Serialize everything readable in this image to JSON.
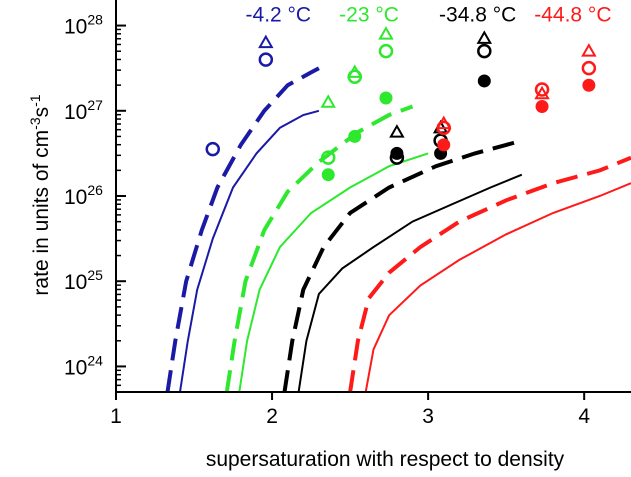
{
  "chart_data": {
    "type": "line",
    "xlabel": "supersaturation with respect to density",
    "ylabel": "rate in units of cm",
    "ylabel_exponent_1": "-3",
    "ylabel_mid": "s",
    "ylabel_exponent_2": "-1",
    "xlim": [
      1,
      4.3
    ],
    "ylim_log10": [
      23.7,
      28.3
    ],
    "x_ticks": [
      {
        "value": 1,
        "label": "1"
      },
      {
        "value": 2,
        "label": "2"
      },
      {
        "value": 3,
        "label": "3"
      },
      {
        "value": 4,
        "label": "4"
      }
    ],
    "y_ticks": [
      {
        "exp": 24,
        "base": "10",
        "sup": "24"
      },
      {
        "exp": 25,
        "base": "10",
        "sup": "25"
      },
      {
        "exp": 26,
        "base": "10",
        "sup": "26"
      },
      {
        "exp": 27,
        "base": "10",
        "sup": "27"
      },
      {
        "exp": 28,
        "base": "10",
        "sup": "28"
      }
    ],
    "series": [
      {
        "name": "-4.2 °C",
        "color": "#1a1aa6",
        "dashed": [
          [
            1.33,
            23.7
          ],
          [
            1.38,
            24.3
          ],
          [
            1.45,
            25.0
          ],
          [
            1.55,
            25.6
          ],
          [
            1.65,
            26.1
          ],
          [
            1.8,
            26.6
          ],
          [
            1.95,
            27.0
          ],
          [
            2.1,
            27.3
          ],
          [
            2.25,
            27.45
          ],
          [
            2.3,
            27.5
          ]
        ],
        "solid": [
          [
            1.41,
            23.7
          ],
          [
            1.46,
            24.3
          ],
          [
            1.52,
            24.9
          ],
          [
            1.62,
            25.5
          ],
          [
            1.75,
            26.1
          ],
          [
            1.9,
            26.5
          ],
          [
            2.05,
            26.8
          ],
          [
            2.2,
            26.95
          ],
          [
            2.3,
            27.0
          ]
        ],
        "triangles": [
          [
            1.96,
            27.8
          ]
        ],
        "circles": [
          [
            1.96,
            27.6
          ],
          [
            1.62,
            26.55
          ]
        ],
        "dots": []
      },
      {
        "name": "-23 °C",
        "color": "#2ee82e",
        "dashed": [
          [
            1.71,
            23.7
          ],
          [
            1.76,
            24.3
          ],
          [
            1.83,
            25.0
          ],
          [
            1.95,
            25.6
          ],
          [
            2.1,
            26.05
          ],
          [
            2.3,
            26.4
          ],
          [
            2.55,
            26.75
          ],
          [
            2.75,
            26.95
          ],
          [
            2.9,
            27.05
          ]
        ],
        "solid": [
          [
            1.79,
            23.7
          ],
          [
            1.84,
            24.3
          ],
          [
            1.92,
            24.9
          ],
          [
            2.05,
            25.4
          ],
          [
            2.25,
            25.8
          ],
          [
            2.5,
            26.1
          ],
          [
            2.75,
            26.35
          ],
          [
            3.0,
            26.5
          ]
        ],
        "triangles": [
          [
            2.36,
            27.1
          ],
          [
            2.53,
            27.45
          ],
          [
            2.73,
            27.9
          ]
        ],
        "circles": [
          [
            2.36,
            26.45
          ],
          [
            2.53,
            27.4
          ],
          [
            2.73,
            27.7
          ]
        ],
        "dots": [
          [
            2.36,
            26.25
          ],
          [
            2.53,
            26.7
          ],
          [
            2.73,
            27.15
          ]
        ]
      },
      {
        "name": "-34.8 °C",
        "color": "#000000",
        "dashed": [
          [
            2.08,
            23.7
          ],
          [
            2.13,
            24.3
          ],
          [
            2.2,
            24.9
          ],
          [
            2.33,
            25.4
          ],
          [
            2.5,
            25.8
          ],
          [
            2.75,
            26.1
          ],
          [
            3.05,
            26.35
          ],
          [
            3.3,
            26.5
          ],
          [
            3.5,
            26.6
          ],
          [
            3.6,
            26.65
          ]
        ],
        "solid": [
          [
            2.17,
            23.7
          ],
          [
            2.22,
            24.3
          ],
          [
            2.3,
            24.85
          ],
          [
            2.45,
            25.15
          ],
          [
            2.65,
            25.4
          ],
          [
            2.9,
            25.7
          ],
          [
            3.15,
            25.9
          ],
          [
            3.4,
            26.1
          ],
          [
            3.6,
            26.25
          ]
        ],
        "triangles": [
          [
            2.8,
            26.75
          ],
          [
            3.08,
            26.8
          ],
          [
            3.36,
            27.85
          ]
        ],
        "circles": [
          [
            2.8,
            26.45
          ],
          [
            3.08,
            26.65
          ],
          [
            3.36,
            27.7
          ]
        ],
        "dots": [
          [
            2.8,
            26.5
          ],
          [
            3.08,
            26.5
          ],
          [
            3.36,
            27.35
          ]
        ]
      },
      {
        "name": "-44.8 °C",
        "color": "#ff1a1a",
        "dashed": [
          [
            2.5,
            23.7
          ],
          [
            2.55,
            24.3
          ],
          [
            2.62,
            24.8
          ],
          [
            2.75,
            25.1
          ],
          [
            2.95,
            25.4
          ],
          [
            3.2,
            25.7
          ],
          [
            3.5,
            25.95
          ],
          [
            3.8,
            26.15
          ],
          [
            4.1,
            26.3
          ],
          [
            4.3,
            26.45
          ]
        ],
        "solid": [
          [
            2.6,
            23.7
          ],
          [
            2.65,
            24.2
          ],
          [
            2.75,
            24.6
          ],
          [
            2.95,
            24.95
          ],
          [
            3.2,
            25.25
          ],
          [
            3.5,
            25.55
          ],
          [
            3.8,
            25.8
          ],
          [
            4.1,
            26.0
          ],
          [
            4.3,
            26.15
          ]
        ],
        "triangles": [
          [
            3.1,
            26.85
          ],
          [
            3.73,
            27.2
          ],
          [
            4.03,
            27.7
          ]
        ],
        "circles": [
          [
            3.1,
            26.8
          ],
          [
            3.73,
            27.25
          ],
          [
            4.03,
            27.5
          ]
        ],
        "dots": [
          [
            3.1,
            26.6
          ],
          [
            3.73,
            27.05
          ],
          [
            4.03,
            27.3
          ]
        ]
      }
    ],
    "series_labels": [
      {
        "series": 0,
        "at": [
          1.83,
          28.05
        ]
      },
      {
        "series": 1,
        "at": [
          2.43,
          28.05
        ]
      },
      {
        "series": 2,
        "at": [
          3.07,
          28.05
        ]
      },
      {
        "series": 3,
        "at": [
          3.68,
          28.05
        ]
      }
    ]
  }
}
